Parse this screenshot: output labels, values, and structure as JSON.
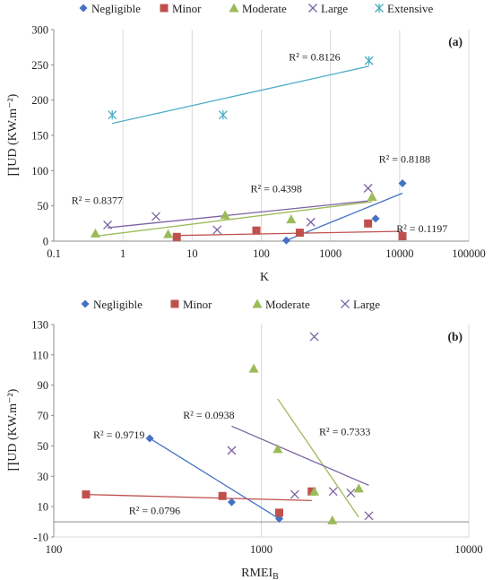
{
  "colors": {
    "negligible": "#4472C4",
    "minor": "#C0504D",
    "moderate": "#9BBB59",
    "large": "#7B63A3",
    "extensive": "#4BACC6",
    "grid": "#d9d9d9",
    "axis": "#8c8c8c",
    "text": "#222222"
  },
  "chart_data": [
    {
      "id": "a",
      "type": "scatter",
      "panel_label": "(a)",
      "xlabel": "K",
      "ylabel": "∏UD (KW.m⁻²)",
      "x_scale": "log",
      "xlim": [
        0.1,
        100000
      ],
      "ylim": [
        0,
        300
      ],
      "x_ticks": [
        0.1,
        1,
        10,
        100,
        1000,
        10000,
        100000
      ],
      "x_tick_labels": [
        "0.1",
        "1",
        "10",
        "100",
        "1000",
        "10000",
        "100000"
      ],
      "y_ticks": [
        0,
        50,
        100,
        150,
        200,
        250,
        300
      ],
      "y_tick_labels": [
        "0",
        "50",
        "100",
        "150",
        "200",
        "250",
        "300"
      ],
      "grid": "vertical",
      "legend_position": "top",
      "series": [
        {
          "name": "Negligible",
          "key": "negligible",
          "marker": "diamond",
          "points": [
            [
              230,
              1
            ],
            [
              4500,
              32
            ],
            [
              11000,
              82
            ]
          ],
          "trend": [
            [
              230,
              1
            ],
            [
              11000,
              68
            ]
          ]
        },
        {
          "name": "Minor",
          "key": "minor",
          "marker": "square",
          "points": [
            [
              6,
              6
            ],
            [
              85,
              15
            ],
            [
              360,
              12
            ],
            [
              3500,
              25
            ],
            [
              11000,
              7
            ]
          ],
          "trend": [
            [
              6,
              8
            ],
            [
              11000,
              14
            ]
          ]
        },
        {
          "name": "Moderate",
          "key": "moderate",
          "marker": "triangle",
          "points": [
            [
              0.4,
              11
            ],
            [
              4.5,
              10
            ],
            [
              30,
              37
            ],
            [
              270,
              31
            ],
            [
              4000,
              63
            ]
          ],
          "trend": [
            [
              0.4,
              7
            ],
            [
              4000,
              56
            ]
          ]
        },
        {
          "name": "Large",
          "key": "large",
          "marker": "x",
          "points": [
            [
              0.6,
              23
            ],
            [
              3,
              35
            ],
            [
              23,
              16
            ],
            [
              520,
              27
            ],
            [
              3500,
              75
            ]
          ],
          "trend": [
            [
              0.6,
              19
            ],
            [
              3500,
              57
            ]
          ]
        },
        {
          "name": "Extensive",
          "key": "extensive",
          "marker": "star",
          "points": [
            [
              0.7,
              179
            ],
            [
              28,
              179
            ],
            [
              3600,
              256
            ]
          ],
          "trend": [
            [
              0.7,
              167
            ],
            [
              3600,
              248
            ]
          ]
        }
      ],
      "annotations": [
        {
          "text": "R² = 0.8126",
          "x": 250,
          "y": 256
        },
        {
          "text": "R² = 0.8188",
          "x": 5000,
          "y": 111
        },
        {
          "text": "R² = 0.8377",
          "x": 0.18,
          "y": 53
        },
        {
          "text": "R² = 0.4398",
          "x": 70,
          "y": 69
        },
        {
          "text": "R² = 0.1197",
          "x": 9000,
          "y": 13
        }
      ]
    },
    {
      "id": "b",
      "type": "scatter",
      "panel_label": "(b)",
      "xlabel": "RMEI_B",
      "ylabel": "∏UD (KW.m⁻²)",
      "x_scale": "log",
      "xlim": [
        100,
        10000
      ],
      "ylim": [
        -10,
        130
      ],
      "x_ticks": [
        100,
        1000,
        10000
      ],
      "x_tick_labels": [
        "100",
        "1000",
        "10000"
      ],
      "y_ticks": [
        -10,
        10,
        30,
        50,
        70,
        90,
        110,
        130
      ],
      "y_tick_labels": [
        "-10",
        "10",
        "30",
        "50",
        "70",
        "90",
        "110",
        "130"
      ],
      "grid": "vertical",
      "legend_position": "top",
      "series": [
        {
          "name": "Negligible",
          "key": "negligible",
          "marker": "diamond",
          "points": [
            [
              290,
              55
            ],
            [
              720,
              13
            ],
            [
              1220,
              2
            ]
          ],
          "trend": [
            [
              290,
              55
            ],
            [
              1220,
              2
            ]
          ]
        },
        {
          "name": "Minor",
          "key": "minor",
          "marker": "square",
          "points": [
            [
              143,
              18
            ],
            [
              650,
              17
            ],
            [
              1220,
              6
            ],
            [
              1750,
              20
            ]
          ],
          "trend": [
            [
              143,
              18
            ],
            [
              1750,
              14
            ]
          ]
        },
        {
          "name": "Moderate",
          "key": "moderate",
          "marker": "triangle",
          "points": [
            [
              920,
              101
            ],
            [
              1200,
              48
            ],
            [
              1800,
              20
            ],
            [
              2200,
              1
            ],
            [
              2950,
              22
            ]
          ],
          "trend": [
            [
              1200,
              81
            ],
            [
              2950,
              3
            ]
          ]
        },
        {
          "name": "Large",
          "key": "large",
          "marker": "x",
          "points": [
            [
              720,
              47
            ],
            [
              1450,
              18
            ],
            [
              1800,
              122
            ],
            [
              2220,
              20
            ],
            [
              2700,
              19
            ],
            [
              3300,
              4
            ]
          ],
          "trend": [
            [
              720,
              63
            ],
            [
              3300,
              24
            ]
          ]
        }
      ],
      "annotations": [
        {
          "text": "R² = 0.9719",
          "x": 155,
          "y": 55
        },
        {
          "text": "R² = 0.0938",
          "x": 420,
          "y": 68
        },
        {
          "text": "R² = 0.7333",
          "x": 1900,
          "y": 57
        },
        {
          "text": "R² = 0.0796",
          "x": 230,
          "y": 5
        }
      ]
    }
  ]
}
